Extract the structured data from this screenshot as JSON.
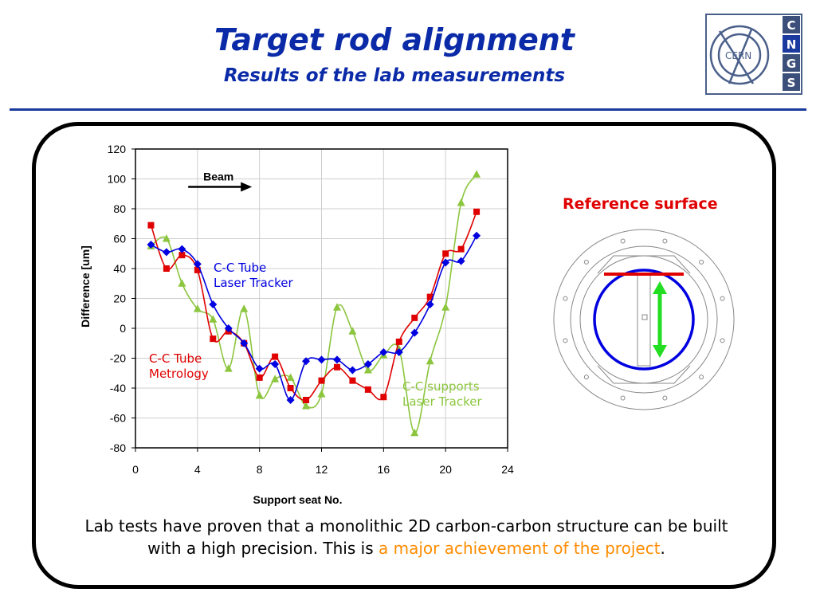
{
  "slide": {
    "title": "Target rod alignment",
    "subtitle": "Results of the lab measurements",
    "caption_main": "Lab tests have proven that a monolithic 2D carbon-carbon structure can be built with a high precision. This is ",
    "caption_highlight": "a major achievement of the project",
    "caption_end": ".",
    "reference_label": "Reference surface"
  },
  "logo": {
    "ring_text": "CERN",
    "letters": [
      "C",
      "N",
      "G",
      "S"
    ]
  },
  "chart_data": {
    "type": "line",
    "xlabel": "Support seat No.",
    "ylabel": "Difference [um]",
    "xlim": [
      0,
      24
    ],
    "ylim": [
      -80,
      120
    ],
    "xticks": [
      0,
      4,
      8,
      12,
      16,
      20,
      24
    ],
    "yticks": [
      -80,
      -60,
      -40,
      -20,
      0,
      20,
      40,
      60,
      80,
      100,
      120
    ],
    "grid": true,
    "annotations": [
      {
        "text": "Beam",
        "kind": "arrow",
        "x": 3.4,
        "y": 100
      }
    ],
    "series": [
      {
        "name": "C-C Tube Laser Tracker",
        "label_lines": [
          "C-C Tube",
          "Laser Tracker"
        ],
        "color": "#0000e0",
        "marker": "diamond",
        "x": [
          1,
          2,
          3,
          4,
          5,
          6,
          7,
          8,
          9,
          10,
          11,
          12,
          13,
          14,
          15,
          16,
          17,
          18,
          19,
          20,
          21,
          22
        ],
        "y": [
          56,
          51,
          53,
          43,
          16,
          0,
          -10,
          -27,
          -24,
          -48,
          -22,
          -21,
          -21,
          -28,
          -24,
          -16,
          -16,
          -3,
          16,
          44,
          45,
          62
        ]
      },
      {
        "name": "C-C Tube Metrology",
        "label_lines": [
          "C-C Tube",
          "Metrology"
        ],
        "color": "#e00000",
        "marker": "square",
        "x": [
          1,
          2,
          3,
          4,
          5,
          6,
          7,
          8,
          9,
          10,
          11,
          12,
          13,
          14,
          15,
          16,
          17,
          18,
          19,
          20,
          21,
          22
        ],
        "y": [
          69,
          40,
          49,
          39,
          -7,
          -2,
          -10,
          -33,
          -19,
          -40,
          -48,
          -35,
          -26,
          -35,
          -41,
          -46,
          -9,
          7,
          21,
          50,
          53,
          78
        ]
      },
      {
        "name": "C-C supports Laser Tracker",
        "label_lines": [
          "C-C supports",
          "Laser Tracker"
        ],
        "color": "#8cc63f",
        "marker": "triangle",
        "x": [
          1,
          2,
          3,
          4,
          5,
          6,
          7,
          8,
          9,
          10,
          11,
          12,
          13,
          14,
          15,
          16,
          17,
          18,
          19,
          20,
          21,
          22
        ],
        "y": [
          55,
          60,
          30,
          13,
          6,
          -27,
          13,
          -45,
          -34,
          -33,
          -52,
          -44,
          14,
          -2,
          -28,
          -18,
          -14,
          -70,
          -22,
          14,
          84,
          103
        ]
      }
    ]
  },
  "diagram": {
    "ring_color": "#0000e0",
    "reference_line_color": "#e00000",
    "arrow_color": "#22dd22",
    "outline_color": "#888888"
  }
}
